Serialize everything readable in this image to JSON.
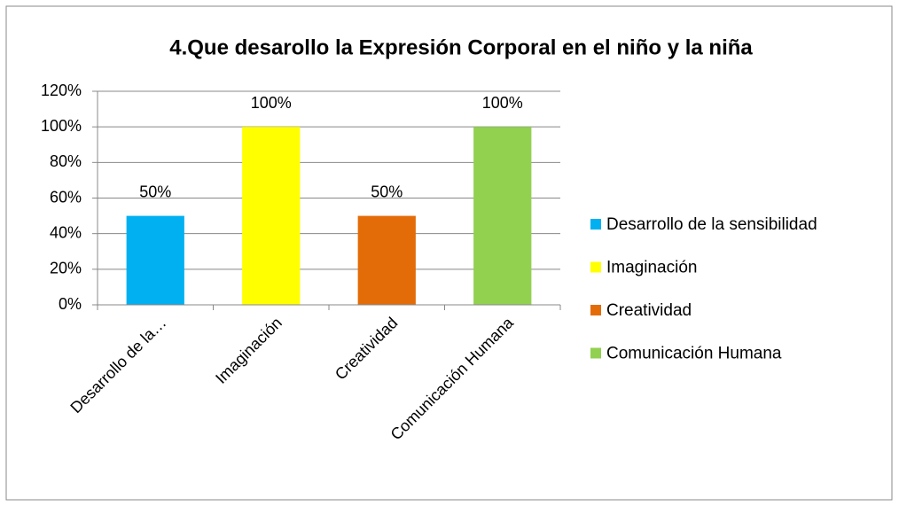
{
  "chart_data": {
    "type": "bar",
    "title": "4.Que desarollo  la Expresión Corporal en el niño y la niña",
    "categories": [
      "Desarrollo de la…",
      "Imaginación",
      "Creatividad",
      "Comunicación Humana"
    ],
    "values": [
      50,
      100,
      50,
      100
    ],
    "value_labels": [
      "50%",
      "100%",
      "50%",
      "100%"
    ],
    "colors": [
      "#00b0f0",
      "#ffff00",
      "#e36c09",
      "#92d050"
    ],
    "legend": [
      "Desarrollo de la sensibilidad",
      "Imaginación",
      "Creatividad",
      "Comunicación Humana"
    ],
    "legend_position": "right",
    "ylim": [
      0,
      120
    ],
    "yticks": [
      {
        "value": 0,
        "label": "0%"
      },
      {
        "value": 20,
        "label": "20%"
      },
      {
        "value": 40,
        "label": "40%"
      },
      {
        "value": 60,
        "label": "60%"
      },
      {
        "value": 80,
        "label": "80%"
      },
      {
        "value": 100,
        "label": "100%"
      },
      {
        "value": 120,
        "label": "120%"
      }
    ],
    "grid": true
  }
}
